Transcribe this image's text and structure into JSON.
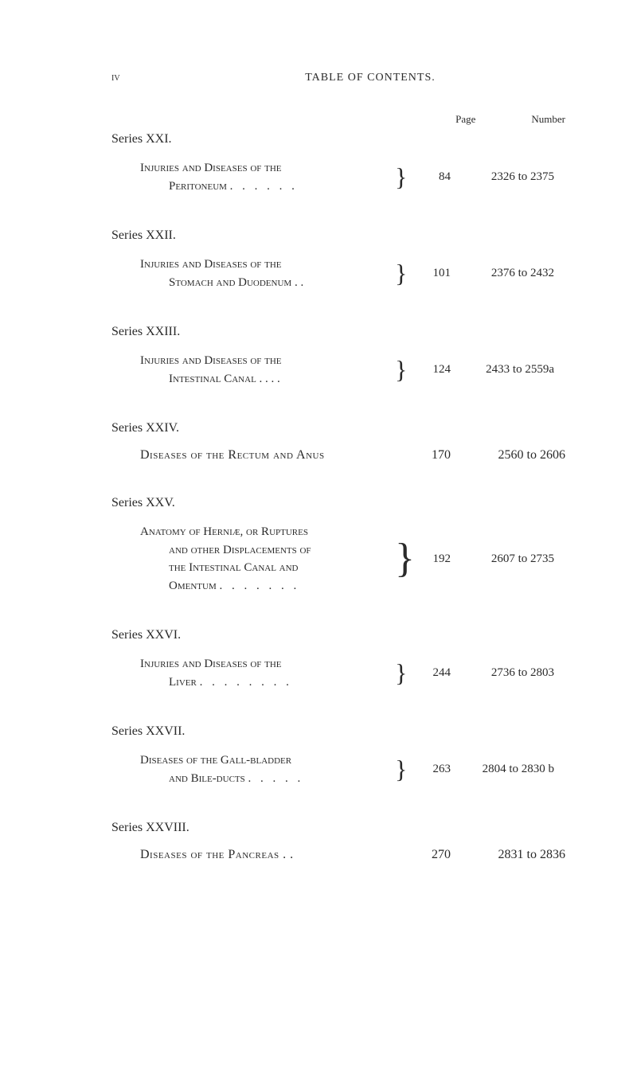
{
  "header": {
    "roman": "iv",
    "title": "TABLE OF CONTENTS."
  },
  "columns": {
    "page": "Page",
    "number": "Number"
  },
  "series": [
    {
      "title": "Series XXI.",
      "entry": {
        "line1": "Injuries and Diseases of the",
        "line2": "Peritoneum",
        "dots2": ". . . . . .",
        "page": "84",
        "number": "2326 to 2375"
      }
    },
    {
      "title": "Series XXII.",
      "entry": {
        "line1": "Injuries and Diseases of the",
        "line2": "Stomach and Duodenum .  .",
        "page": "101",
        "number": "2376 to 2432"
      }
    },
    {
      "title": "Series XXIII.",
      "entry": {
        "line1": "Injuries and Diseases of the",
        "line2": "Intestinal Canal . . . .",
        "page": "124",
        "number": "2433 to 2559a"
      }
    },
    {
      "title": "Series XXIV.",
      "single": {
        "desc": "Diseases of the Rectum and Anus",
        "page": "170",
        "number": "2560 to 2606"
      }
    },
    {
      "title": "Series XXV.",
      "entry4": {
        "line1": "Anatomy of Herniæ, or Ruptures",
        "line2": "and other Displacements of",
        "line3": "the Intestinal Canal and",
        "line4": "Omentum",
        "dots4": ". . . . . . .",
        "page": "192",
        "number": "2607 to 2735"
      }
    },
    {
      "title": "Series XXVI.",
      "entry": {
        "line1": "Injuries and Diseases of the",
        "line2": "Liver",
        "dots2": ". . . . . . . .",
        "page": "244",
        "number": "2736 to 2803"
      }
    },
    {
      "title": "Series XXVII.",
      "entry": {
        "line1": "Diseases of the Gall-bladder",
        "line2": "and Bile-ducts",
        "dots2": ". . . . .",
        "page": "263",
        "number": "2804 to 2830 b"
      }
    },
    {
      "title": "Series XXVIII.",
      "single": {
        "desc": "Diseases of the Pancreas   . .",
        "page": "270",
        "number": "2831 to 2836"
      }
    }
  ]
}
